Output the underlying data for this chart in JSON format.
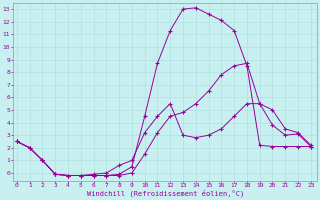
{
  "xlabel": "Windchill (Refroidissement éolien,°C)",
  "background_color": "#c8f0f0",
  "line_color": "#990099",
  "grid_color": "#b0e0e0",
  "x_ticks": [
    0,
    1,
    2,
    3,
    4,
    5,
    6,
    7,
    8,
    9,
    10,
    11,
    12,
    13,
    14,
    15,
    16,
    17,
    18,
    19,
    20,
    21,
    22,
    23
  ],
  "y_ticks": [
    0,
    1,
    2,
    3,
    4,
    5,
    6,
    7,
    8,
    9,
    10,
    11,
    12,
    13
  ],
  "xlim": [
    -0.3,
    23.5
  ],
  "ylim": [
    -0.6,
    13.5
  ],
  "line1_x": [
    0,
    1,
    2,
    3,
    4,
    5,
    6,
    7,
    8,
    9,
    10,
    11,
    12,
    13,
    14,
    15,
    16,
    17,
    18,
    19,
    20,
    21,
    22,
    23
  ],
  "line1_y": [
    2.5,
    2.0,
    1.0,
    -0.1,
    -0.2,
    -0.2,
    -0.2,
    -0.2,
    -0.1,
    0.5,
    4.5,
    8.7,
    11.3,
    13.0,
    13.1,
    12.6,
    12.1,
    11.3,
    8.5,
    2.2,
    2.1,
    2.1,
    2.1,
    2.1
  ],
  "line2_x": [
    0,
    1,
    2,
    3,
    4,
    5,
    6,
    7,
    8,
    9,
    10,
    11,
    12,
    13,
    14,
    15,
    16,
    17,
    18,
    19,
    20,
    21,
    22,
    23
  ],
  "line2_y": [
    2.5,
    2.0,
    1.0,
    -0.1,
    -0.2,
    -0.2,
    -0.1,
    0.0,
    0.6,
    1.0,
    3.2,
    4.5,
    5.5,
    3.0,
    2.8,
    3.0,
    3.5,
    4.5,
    5.5,
    5.5,
    3.8,
    3.0,
    3.1,
    2.1
  ],
  "line3_x": [
    0,
    1,
    2,
    3,
    4,
    5,
    6,
    7,
    8,
    9,
    10,
    11,
    12,
    13,
    14,
    15,
    16,
    17,
    18,
    19,
    20,
    21,
    22,
    23
  ],
  "line3_y": [
    2.5,
    2.0,
    1.0,
    -0.1,
    -0.2,
    -0.2,
    -0.2,
    -0.2,
    -0.2,
    0.0,
    1.5,
    3.2,
    4.5,
    4.8,
    5.5,
    6.5,
    7.8,
    8.5,
    8.7,
    5.5,
    5.0,
    3.5,
    3.2,
    2.2
  ]
}
